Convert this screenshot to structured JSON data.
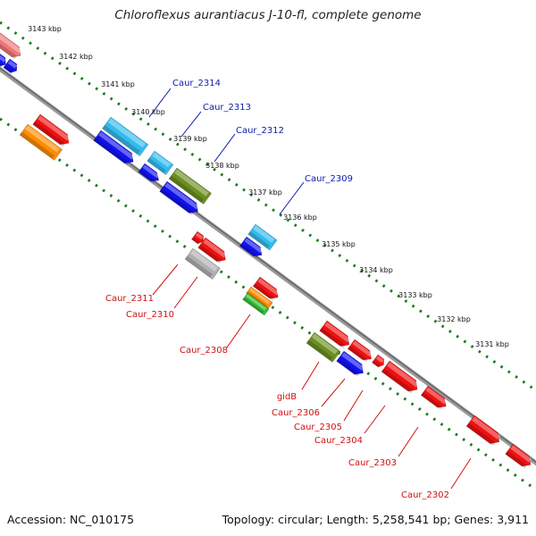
{
  "title": "Chloroflexus aurantiacus J-10-fl, complete genome",
  "accession": "Accession: NC_010175",
  "summary": "Topology: circular; Length: 5,258,541 bp; Genes: 3,911",
  "colors": {
    "backbone": "#7a7a7a",
    "ticks": "#1d7a1d",
    "forward_label": "#0a1aa8",
    "reverse_label": "#d01010",
    "feature_red": "#ee1111",
    "feature_blue": "#1111ee",
    "feature_cyan": "#33bbee",
    "feature_olive": "#6b8e23",
    "feature_orange": "#ff8c00",
    "feature_pink": "#ee7777",
    "feature_gray": "#b0b0b0",
    "feature_green": "#33bb33"
  },
  "ticks": [
    {
      "label": "3143 kbp"
    },
    {
      "label": "3142 kbp"
    },
    {
      "label": "3141 kbp"
    },
    {
      "label": "3140 kbp"
    },
    {
      "label": "3139 kbp"
    },
    {
      "label": "3138 kbp"
    },
    {
      "label": "3137 kbp"
    },
    {
      "label": "3136 kbp"
    },
    {
      "label": "3135 kbp"
    },
    {
      "label": "3134 kbp"
    },
    {
      "label": "3133 kbp"
    },
    {
      "label": "3132 kbp"
    },
    {
      "label": "3131 kbp"
    }
  ],
  "forward_genes": [
    "Caur_2314",
    "Caur_2313",
    "Caur_2312",
    "Caur_2309"
  ],
  "reverse_genes": [
    "Caur_2311",
    "Caur_2310",
    "Caur_2308",
    "gidB",
    "Caur_2306",
    "Caur_2305",
    "Caur_2304",
    "Caur_2303",
    "Caur_2302"
  ]
}
